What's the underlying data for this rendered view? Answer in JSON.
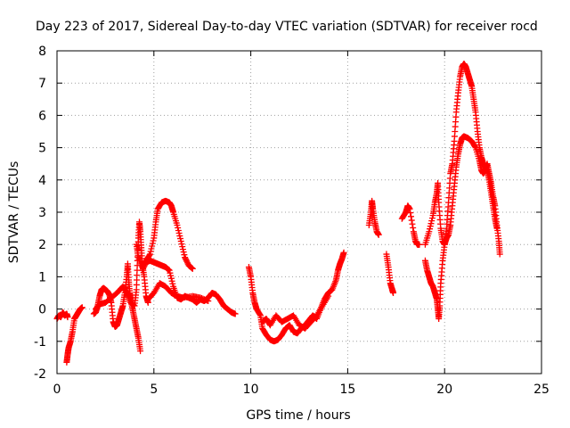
{
  "chart_data": {
    "type": "scatter",
    "title": "Day 223 of 2017, Sidereal Day-to-day VTEC variation (SDTVAR) for receiver rocd",
    "xlabel": "GPS time / hours",
    "ylabel": "SDTVAR / TECUs",
    "xlim": [
      0,
      25
    ],
    "ylim": [
      -2,
      8
    ],
    "xticks": [
      0,
      5,
      10,
      15,
      20,
      25
    ],
    "yticks": [
      -2,
      -1,
      0,
      1,
      2,
      3,
      4,
      5,
      6,
      7,
      8
    ],
    "grid": true,
    "marker": "+",
    "color": "#ff0000",
    "series": [
      {
        "name": "SDTVAR",
        "segments": [
          [
            [
              0.0,
              -0.3
            ],
            [
              0.1,
              -0.2
            ],
            [
              0.2,
              -0.25
            ],
            [
              0.3,
              -0.1
            ],
            [
              0.4,
              -0.2
            ],
            [
              0.5,
              -0.15
            ],
            [
              0.55,
              -0.25
            ]
          ],
          [
            [
              0.5,
              -1.65
            ],
            [
              0.55,
              -1.4
            ],
            [
              0.6,
              -1.2
            ],
            [
              0.7,
              -1.0
            ],
            [
              0.8,
              -0.7
            ],
            [
              0.9,
              -0.3
            ],
            [
              1.0,
              -0.2
            ],
            [
              1.1,
              -0.1
            ],
            [
              1.2,
              0.0
            ],
            [
              1.3,
              0.05
            ]
          ],
          [
            [
              1.9,
              -0.15
            ],
            [
              2.0,
              -0.1
            ],
            [
              2.1,
              0.1
            ],
            [
              2.2,
              0.4
            ],
            [
              2.3,
              0.6
            ],
            [
              2.4,
              0.65
            ],
            [
              2.5,
              0.6
            ],
            [
              2.6,
              0.55
            ],
            [
              2.7,
              0.45
            ],
            [
              2.8,
              0.2
            ],
            [
              2.9,
              -0.4
            ],
            [
              3.0,
              -0.55
            ],
            [
              3.1,
              -0.5
            ],
            [
              3.2,
              -0.3
            ],
            [
              3.3,
              -0.1
            ],
            [
              3.4,
              0.1
            ],
            [
              3.5,
              0.5
            ],
            [
              3.6,
              1.0
            ],
            [
              3.65,
              1.4
            ],
            [
              3.7,
              0.9
            ],
            [
              3.75,
              0.5
            ],
            [
              3.8,
              0.3
            ],
            [
              3.9,
              0.0
            ],
            [
              4.0,
              -0.3
            ],
            [
              4.1,
              -0.6
            ],
            [
              4.2,
              -0.9
            ],
            [
              4.3,
              -1.3
            ]
          ],
          [
            [
              2.0,
              0.0
            ],
            [
              2.2,
              0.15
            ],
            [
              2.5,
              0.2
            ],
            [
              2.8,
              0.35
            ],
            [
              3.1,
              0.5
            ],
            [
              3.4,
              0.7
            ],
            [
              3.6,
              0.5
            ],
            [
              3.8,
              0.2
            ],
            [
              4.0,
              0.1
            ],
            [
              4.1,
              0.6
            ],
            [
              4.15,
              1.5
            ],
            [
              4.2,
              2.2
            ],
            [
              4.25,
              2.7
            ],
            [
              4.3,
              2.4
            ],
            [
              4.35,
              1.9
            ],
            [
              4.4,
              1.4
            ],
            [
              4.5,
              1.0
            ],
            [
              4.6,
              0.4
            ],
            [
              4.7,
              0.2
            ]
          ],
          [
            [
              4.1,
              2.0
            ],
            [
              4.2,
              1.6
            ],
            [
              4.4,
              1.3
            ],
            [
              4.6,
              1.5
            ],
            [
              4.8,
              1.7
            ],
            [
              5.0,
              2.2
            ],
            [
              5.1,
              2.7
            ],
            [
              5.2,
              3.1
            ],
            [
              5.4,
              3.3
            ],
            [
              5.6,
              3.35
            ],
            [
              5.8,
              3.3
            ],
            [
              5.9,
              3.2
            ],
            [
              6.0,
              3.0
            ],
            [
              6.2,
              2.6
            ],
            [
              6.4,
              2.1
            ],
            [
              6.6,
              1.6
            ],
            [
              6.8,
              1.35
            ],
            [
              7.0,
              1.25
            ]
          ],
          [
            [
              4.4,
              1.2
            ],
            [
              4.6,
              1.45
            ],
            [
              4.8,
              1.5
            ],
            [
              5.0,
              1.45
            ],
            [
              5.2,
              1.4
            ],
            [
              5.4,
              1.35
            ],
            [
              5.6,
              1.3
            ],
            [
              5.8,
              1.2
            ],
            [
              6.0,
              0.7
            ],
            [
              6.2,
              0.35
            ],
            [
              6.4,
              0.3
            ],
            [
              6.6,
              0.4
            ],
            [
              6.8,
              0.35
            ],
            [
              7.0,
              0.3
            ],
            [
              7.2,
              0.2
            ],
            [
              7.4,
              0.3
            ],
            [
              7.6,
              0.25
            ],
            [
              7.8,
              0.35
            ],
            [
              8.0,
              0.5
            ],
            [
              8.2,
              0.45
            ],
            [
              8.4,
              0.3
            ],
            [
              8.6,
              0.1
            ],
            [
              8.8,
              0.0
            ],
            [
              9.0,
              -0.1
            ],
            [
              9.2,
              -0.15
            ]
          ],
          [
            [
              4.7,
              0.3
            ],
            [
              5.0,
              0.5
            ],
            [
              5.3,
              0.8
            ],
            [
              5.6,
              0.7
            ],
            [
              5.9,
              0.5
            ],
            [
              6.2,
              0.4
            ],
            [
              6.5,
              0.35
            ],
            [
              7.0,
              0.4
            ],
            [
              7.4,
              0.35
            ],
            [
              7.8,
              0.25
            ]
          ],
          [
            [
              9.9,
              1.3
            ],
            [
              10.0,
              1.0
            ],
            [
              10.1,
              0.5
            ],
            [
              10.2,
              0.2
            ],
            [
              10.3,
              0.0
            ],
            [
              10.5,
              -0.2
            ],
            [
              10.6,
              -0.6
            ],
            [
              10.8,
              -0.8
            ],
            [
              11.0,
              -0.95
            ],
            [
              11.2,
              -1.0
            ],
            [
              11.4,
              -0.95
            ],
            [
              11.6,
              -0.8
            ],
            [
              11.8,
              -0.6
            ],
            [
              12.0,
              -0.5
            ],
            [
              12.2,
              -0.7
            ],
            [
              12.4,
              -0.75
            ],
            [
              12.6,
              -0.6
            ],
            [
              12.8,
              -0.5
            ],
            [
              13.0,
              -0.35
            ],
            [
              13.2,
              -0.2
            ],
            [
              13.4,
              -0.3
            ],
            [
              13.6,
              0.0
            ],
            [
              13.8,
              0.3
            ],
            [
              14.0,
              0.5
            ],
            [
              14.2,
              0.6
            ],
            [
              14.4,
              0.9
            ],
            [
              14.5,
              1.2
            ],
            [
              14.6,
              1.4
            ],
            [
              14.7,
              1.55
            ],
            [
              14.8,
              1.75
            ]
          ],
          [
            [
              10.6,
              -0.4
            ],
            [
              10.8,
              -0.3
            ],
            [
              11.0,
              -0.5
            ],
            [
              11.3,
              -0.2
            ],
            [
              11.6,
              -0.4
            ],
            [
              11.9,
              -0.3
            ],
            [
              12.2,
              -0.2
            ],
            [
              12.5,
              -0.5
            ],
            [
              12.8,
              -0.6
            ],
            [
              13.1,
              -0.4
            ],
            [
              13.4,
              -0.2
            ],
            [
              13.7,
              0.1
            ],
            [
              14.0,
              0.4
            ]
          ],
          [
            [
              16.1,
              2.6
            ],
            [
              16.2,
              3.0
            ],
            [
              16.25,
              3.35
            ],
            [
              16.3,
              3.1
            ],
            [
              16.4,
              2.7
            ],
            [
              16.5,
              2.4
            ],
            [
              16.6,
              2.3
            ]
          ],
          [
            [
              17.0,
              1.7
            ],
            [
              17.1,
              1.3
            ],
            [
              17.2,
              0.8
            ],
            [
              17.3,
              0.6
            ],
            [
              17.35,
              0.5
            ]
          ],
          [
            [
              17.8,
              2.8
            ],
            [
              18.0,
              3.0
            ],
            [
              18.1,
              3.2
            ],
            [
              18.2,
              3.1
            ],
            [
              18.4,
              2.4
            ],
            [
              18.5,
              2.1
            ],
            [
              18.6,
              2.0
            ],
            [
              18.7,
              2.0
            ]
          ],
          [
            [
              19.0,
              1.5
            ],
            [
              19.1,
              1.2
            ],
            [
              19.2,
              1.0
            ],
            [
              19.3,
              0.8
            ],
            [
              19.4,
              0.7
            ],
            [
              19.5,
              0.5
            ],
            [
              19.6,
              0.3
            ],
            [
              19.65,
              0.0
            ],
            [
              19.7,
              -0.3
            ],
            [
              19.75,
              0.1
            ],
            [
              19.8,
              0.8
            ],
            [
              19.9,
              1.5
            ],
            [
              20.0,
              2.0
            ],
            [
              20.1,
              2.2
            ],
            [
              20.2,
              2.3
            ],
            [
              20.3,
              2.6
            ],
            [
              20.4,
              3.2
            ],
            [
              20.5,
              3.8
            ],
            [
              20.6,
              4.4
            ],
            [
              20.7,
              4.8
            ],
            [
              20.8,
              5.1
            ],
            [
              20.9,
              5.3
            ],
            [
              21.0,
              5.35
            ],
            [
              21.2,
              5.3
            ],
            [
              21.4,
              5.2
            ],
            [
              21.6,
              5.0
            ],
            [
              21.8,
              4.6
            ],
            [
              21.9,
              4.3
            ],
            [
              22.0,
              4.2
            ],
            [
              22.1,
              4.3
            ],
            [
              22.2,
              4.5
            ],
            [
              22.3,
              4.2
            ],
            [
              22.4,
              3.9
            ],
            [
              22.5,
              3.5
            ],
            [
              22.6,
              3.2
            ],
            [
              22.7,
              2.6
            ],
            [
              22.8,
              2.1
            ],
            [
              22.85,
              1.7
            ]
          ],
          [
            [
              19.0,
              2.0
            ],
            [
              19.2,
              2.4
            ],
            [
              19.4,
              2.9
            ],
            [
              19.5,
              3.3
            ],
            [
              19.6,
              3.6
            ],
            [
              19.65,
              3.9
            ],
            [
              19.7,
              3.3
            ],
            [
              19.8,
              2.5
            ],
            [
              19.9,
              2.1
            ],
            [
              20.0,
              2.0
            ],
            [
              20.1,
              2.5
            ],
            [
              20.2,
              3.3
            ],
            [
              20.3,
              4.2
            ],
            [
              20.4,
              4.5
            ],
            [
              20.5,
              5.2
            ],
            [
              20.6,
              6.1
            ],
            [
              20.7,
              6.7
            ],
            [
              20.8,
              7.2
            ],
            [
              20.9,
              7.5
            ],
            [
              21.0,
              7.6
            ],
            [
              21.1,
              7.5
            ],
            [
              21.2,
              7.3
            ],
            [
              21.3,
              7.1
            ],
            [
              21.4,
              6.9
            ],
            [
              21.5,
              6.5
            ],
            [
              21.6,
              6.1
            ],
            [
              21.7,
              5.5
            ],
            [
              21.8,
              5.0
            ],
            [
              21.9,
              4.7
            ],
            [
              22.0,
              4.5
            ],
            [
              22.1,
              4.4
            ],
            [
              22.2,
              4.3
            ],
            [
              22.3,
              4.0
            ],
            [
              22.4,
              3.6
            ],
            [
              22.5,
              3.2
            ],
            [
              22.6,
              2.8
            ],
            [
              22.7,
              2.5
            ]
          ]
        ]
      }
    ]
  }
}
